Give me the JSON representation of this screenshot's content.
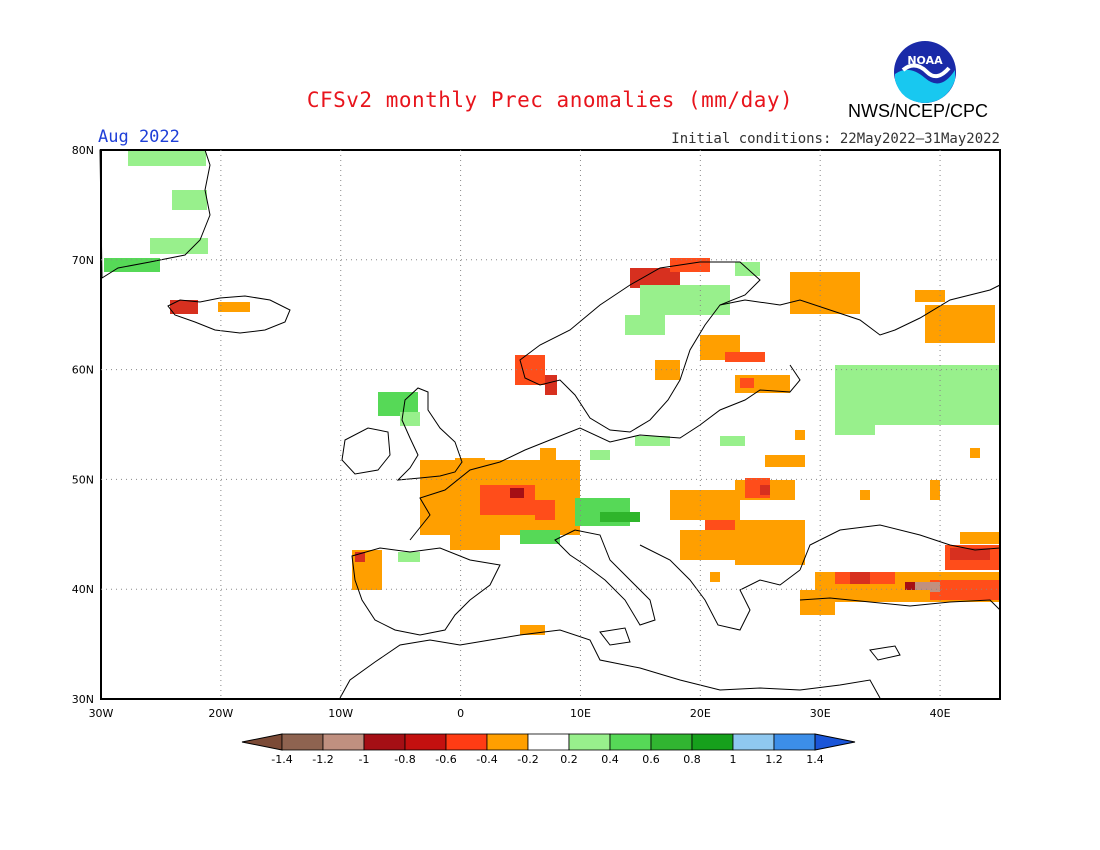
{
  "header": {
    "title": "CFSv2 monthly Prec anomalies (mm/day)",
    "period": "Aug 2022",
    "initial_conditions": "Initial conditions: 22May2022–31May2022",
    "agency": "NWS/NCEP/CPC",
    "logo_text": "NOAA"
  },
  "map": {
    "lon_range": [
      -30,
      45
    ],
    "lat_range": [
      30,
      80
    ],
    "lon_ticks": [
      "30W",
      "20W",
      "10W",
      "0",
      "10E",
      "20E",
      "30E",
      "40E"
    ],
    "lat_ticks": [
      "30N",
      "40N",
      "50N",
      "60N",
      "70N",
      "80N"
    ],
    "grid": true,
    "colors": {
      "dry_strong": "#a50f15",
      "dry_mid": "#d7301f",
      "dry_light": "#ff4d1a",
      "dry_weak": "#ff9f00",
      "neutral": "#ffffff",
      "wet_weak": "#98f08c",
      "wet_light": "#56d957",
      "wet_mid": "#2fb52b",
      "coast": "#000000",
      "grid": "#888888"
    }
  },
  "legend": {
    "labels": [
      "-1.4",
      "-1.2",
      "-1",
      "-0.8",
      "-0.6",
      "-0.4",
      "-0.2",
      "0.2",
      "0.4",
      "0.6",
      "0.8",
      "1",
      "1.2",
      "1.4"
    ],
    "colors": [
      "#7b4a36",
      "#8e6350",
      "#c09080",
      "#a50f15",
      "#c3100f",
      "#ff3c14",
      "#ff9f00",
      "#ffffff",
      "#98f08c",
      "#56d957",
      "#31b531",
      "#16a01c",
      "#8fc8f0",
      "#3c8ee8",
      "#1a55d8"
    ]
  }
}
